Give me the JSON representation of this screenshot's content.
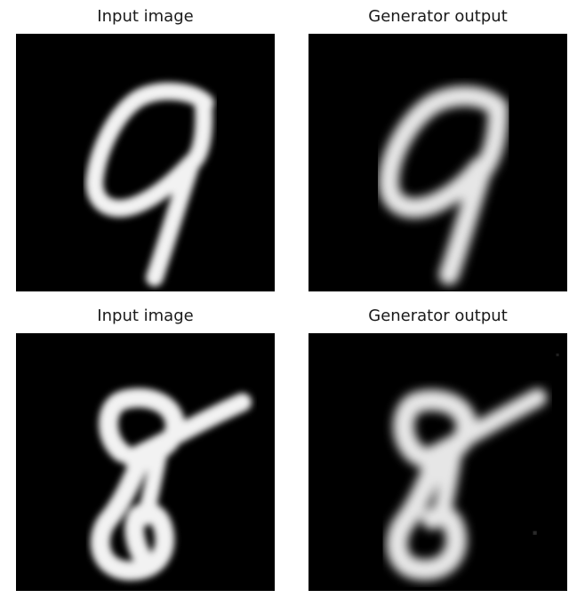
{
  "figure": {
    "panels": [
      {
        "title": "Input image",
        "digit": "9",
        "variant": "input"
      },
      {
        "title": "Generator output",
        "digit": "9",
        "variant": "output"
      },
      {
        "title": "Input image",
        "digit": "8",
        "variant": "input"
      },
      {
        "title": "Generator output",
        "digit": "8",
        "variant": "output"
      }
    ]
  }
}
